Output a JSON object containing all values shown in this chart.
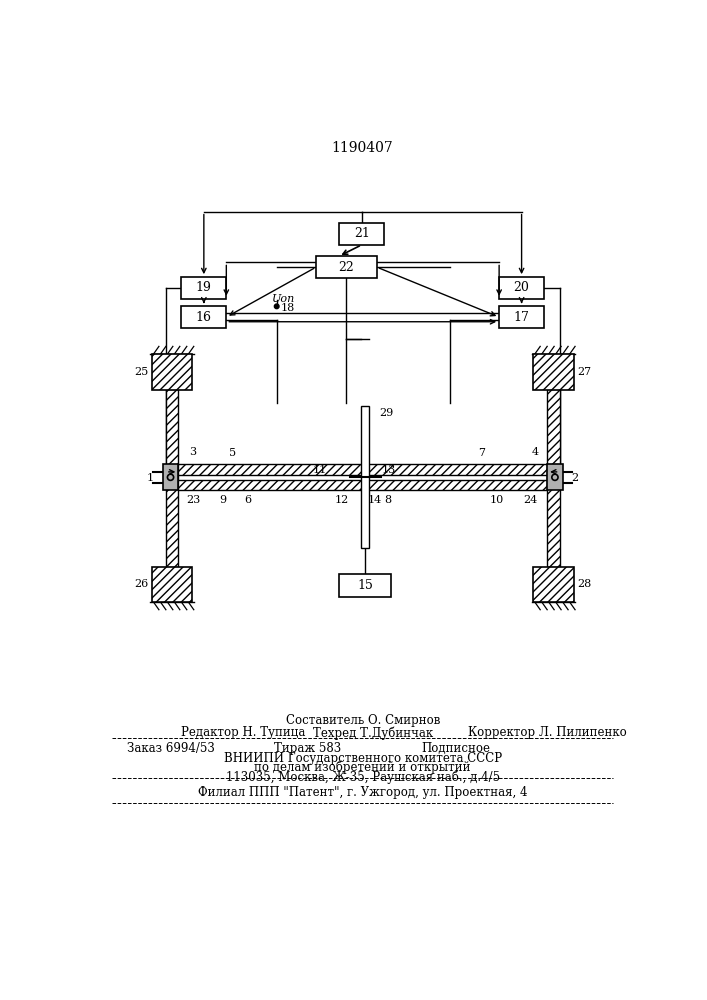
{
  "title": "1190407",
  "bg_color": "#ffffff",
  "footer": {
    "line1": "Составитель О. Смирнов",
    "line2_left": "Редактор Н. Тупица",
    "line2_mid": "Техред Т.Дубинчак",
    "line2_right": "Корректор Л. Пилипенко",
    "line3_left": "Заказ 6994/53",
    "line3_mid": "Тираж 583",
    "line3_right": "Подписное",
    "line4": "ВНИИПИ Государственного комитета СССР",
    "line5": "по делам изобретений и открытий",
    "line6": "113035, Москва, Ж-35, Раушская наб., д.4/5",
    "line7": "Филиал ППП \"Патент\", г. Ужгород, ул. Проектная, 4"
  }
}
